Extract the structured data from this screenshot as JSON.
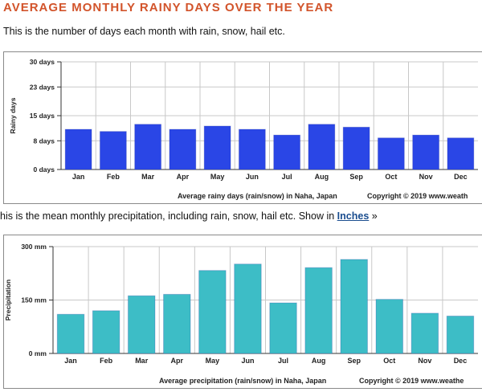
{
  "header": {
    "title": "AVERAGE MONTHLY RAINY DAYS OVER THE YEAR",
    "rainy_desc": "This is the number of days each month with rain, snow, hail etc.",
    "precip_desc": "his is the mean monthly precipitation, including rain, snow, hail etc. Show in ",
    "precip_link": "Inches",
    "precip_suffix": " »"
  },
  "colors": {
    "rainy_bar": "#2a46e6",
    "precip_bar": "#3dbdc6",
    "accent": "#d2542b"
  },
  "chart_data": [
    {
      "type": "bar",
      "categories": [
        "Jan",
        "Feb",
        "Mar",
        "Apr",
        "May",
        "Jun",
        "Jul",
        "Aug",
        "Sep",
        "Oct",
        "Nov",
        "Dec"
      ],
      "values": [
        11.2,
        10.6,
        12.6,
        11.2,
        12.1,
        11.2,
        9.6,
        12.6,
        11.8,
        8.8,
        9.6,
        8.8
      ],
      "yticks": [
        0,
        8,
        15,
        23,
        30
      ],
      "ytick_labels": [
        "0 days",
        "8 days",
        "15 days",
        "23 days",
        "30 days"
      ],
      "ylim": [
        0,
        30
      ],
      "ylabel": "Rainy days",
      "caption": "Average rainy days (rain/snow) in Naha, Japan",
      "copyright": "Copyright © 2019 www.weath"
    },
    {
      "type": "bar",
      "categories": [
        "Jan",
        "Feb",
        "Mar",
        "Apr",
        "May",
        "Jun",
        "Jul",
        "Aug",
        "Sep",
        "Oct",
        "Nov",
        "Dec"
      ],
      "values": [
        110,
        120,
        162,
        166,
        233,
        251,
        142,
        241,
        264,
        152,
        113,
        105
      ],
      "yticks": [
        0,
        150,
        300
      ],
      "ytick_labels": [
        "0 mm",
        "150 mm",
        "300 mm"
      ],
      "ylim": [
        0,
        300
      ],
      "ylabel": "Precipitation",
      "caption": "Average precipitation (rain/snow) in Naha, Japan",
      "copyright": "Copyright © 2019 www.weathe"
    }
  ]
}
